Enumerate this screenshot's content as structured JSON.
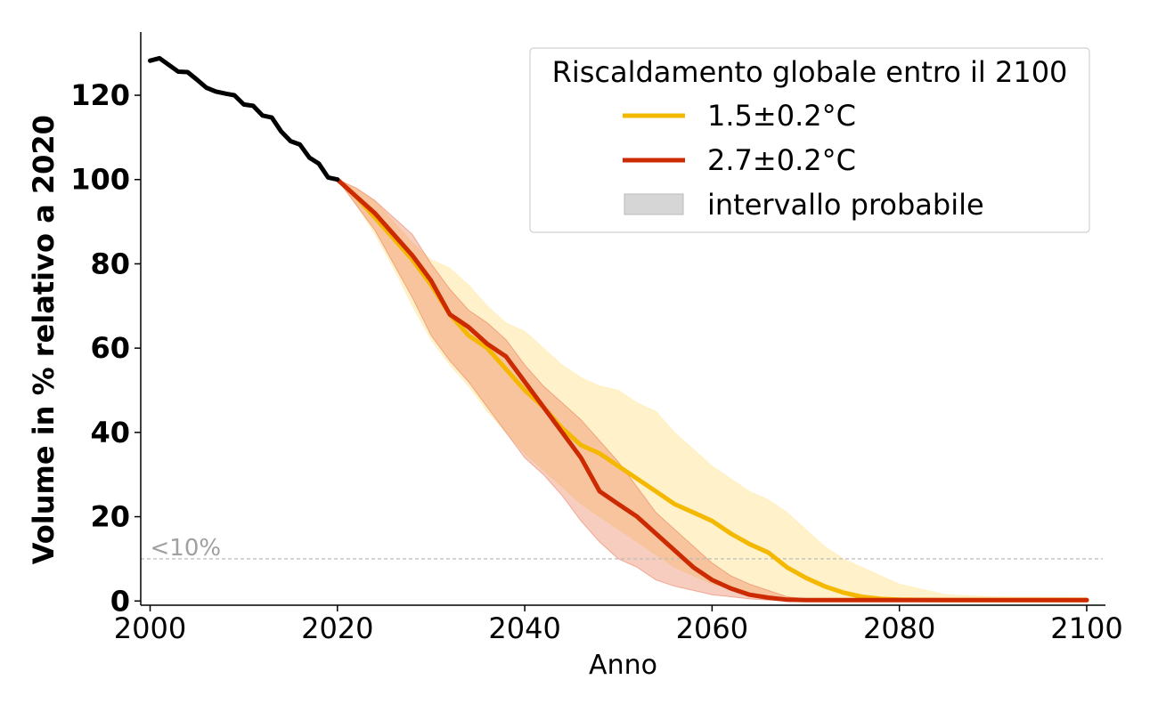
{
  "chart_data": {
    "type": "line",
    "title": "",
    "xlabel": "Anno",
    "ylabel": "Volume in % relativo a 2020",
    "xlim": [
      1999,
      2102
    ],
    "ylim": [
      -1,
      135
    ],
    "x_ticks": [
      2000,
      2020,
      2040,
      2060,
      2080,
      2100
    ],
    "y_ticks": [
      0,
      20,
      40,
      60,
      80,
      100,
      120
    ],
    "grid": false,
    "legend": {
      "title": "Riscaldamento globale entro il 2100",
      "position": "top-right",
      "entries": [
        {
          "label": "1.5±0.2°C",
          "kind": "line",
          "color": "#f5b800"
        },
        {
          "label": "2.7±0.2°C",
          "kind": "line",
          "color": "#cc2a00"
        },
        {
          "label": "intervallo probabile",
          "kind": "patch",
          "color": "#d6d6d6"
        }
      ]
    },
    "threshold": {
      "y": 10,
      "label": "<10%",
      "color": "#bbbbbb"
    },
    "historical": {
      "color": "#000000",
      "x": [
        2000,
        2001,
        2002,
        2003,
        2004,
        2005,
        2006,
        2007,
        2008,
        2009,
        2010,
        2011,
        2012,
        2013,
        2014,
        2015,
        2016,
        2017,
        2018,
        2019,
        2020
      ],
      "y": [
        128.2,
        128.8,
        127.2,
        125.6,
        125.5,
        123.7,
        121.8,
        120.9,
        120.4,
        120.0,
        117.8,
        117.5,
        115.2,
        114.7,
        111.4,
        109.1,
        108.3,
        105.2,
        103.8,
        100.5,
        100.0
      ]
    },
    "series": [
      {
        "name": "1.5±0.2°C",
        "color": "#f5b800",
        "band_color": "#ffe9a8",
        "x": [
          2020,
          2022,
          2024,
          2026,
          2028,
          2030,
          2032,
          2034,
          2036,
          2038,
          2040,
          2042,
          2044,
          2046,
          2048,
          2050,
          2052,
          2054,
          2056,
          2058,
          2060,
          2062,
          2064,
          2066,
          2068,
          2070,
          2072,
          2074,
          2076,
          2078,
          2080,
          2085,
          2090,
          2100
        ],
        "y": [
          100,
          96,
          91,
          86,
          81,
          75,
          68,
          63,
          60,
          55,
          50,
          46,
          41,
          37,
          35,
          32,
          29,
          26,
          23,
          21,
          19,
          16,
          13.5,
          11.5,
          8,
          5.5,
          3.5,
          2,
          1,
          0.5,
          0.3,
          0.2,
          0.2,
          0.2
        ],
        "band_low": [
          100,
          94,
          87,
          79,
          70,
          62,
          56,
          51,
          45,
          40,
          35,
          31,
          27,
          23,
          20,
          17,
          14,
          11,
          8,
          6,
          4,
          3,
          2,
          1.5,
          1,
          0.5,
          0.3,
          0.2,
          0.1,
          0.1,
          0.1,
          0.1,
          0.1,
          0.1
        ],
        "band_high": [
          100,
          98,
          95,
          90,
          85,
          81,
          79,
          75,
          70,
          66,
          64,
          60,
          56,
          53,
          51,
          50,
          47,
          45,
          40,
          36,
          32,
          29,
          26,
          24,
          21,
          17,
          13,
          10,
          8,
          6,
          4,
          1.5,
          1,
          0.8
        ]
      },
      {
        "name": "2.7±0.2°C",
        "color": "#cc2a00",
        "band_color": "#e8704a",
        "x": [
          2020,
          2022,
          2024,
          2026,
          2028,
          2030,
          2032,
          2034,
          2036,
          2038,
          2040,
          2042,
          2044,
          2046,
          2048,
          2050,
          2052,
          2054,
          2056,
          2058,
          2060,
          2062,
          2064,
          2066,
          2068,
          2070,
          2080,
          2090,
          2100
        ],
        "y": [
          100,
          96,
          92,
          87,
          82,
          76,
          68,
          65,
          61,
          58,
          52,
          46,
          40,
          34,
          26,
          23,
          20,
          16,
          12,
          8,
          5,
          3,
          1.5,
          0.8,
          0.3,
          0.2,
          0.2,
          0.2,
          0.2
        ],
        "band_low": [
          100,
          94,
          88,
          80,
          72,
          63,
          57,
          52,
          46,
          40,
          34,
          30,
          25,
          19,
          14,
          10,
          8,
          5,
          3.5,
          2.5,
          1.5,
          1,
          0.5,
          0.2,
          0.1,
          0.1,
          0.1,
          0.1,
          0.1
        ],
        "band_high": [
          100,
          98,
          95,
          91,
          87,
          80,
          74,
          69,
          66,
          62,
          56,
          51,
          47,
          43,
          38,
          33,
          27,
          21,
          17,
          13,
          9,
          6,
          4,
          2.5,
          1,
          0.5,
          0.3,
          0.3,
          0.3
        ]
      }
    ]
  }
}
